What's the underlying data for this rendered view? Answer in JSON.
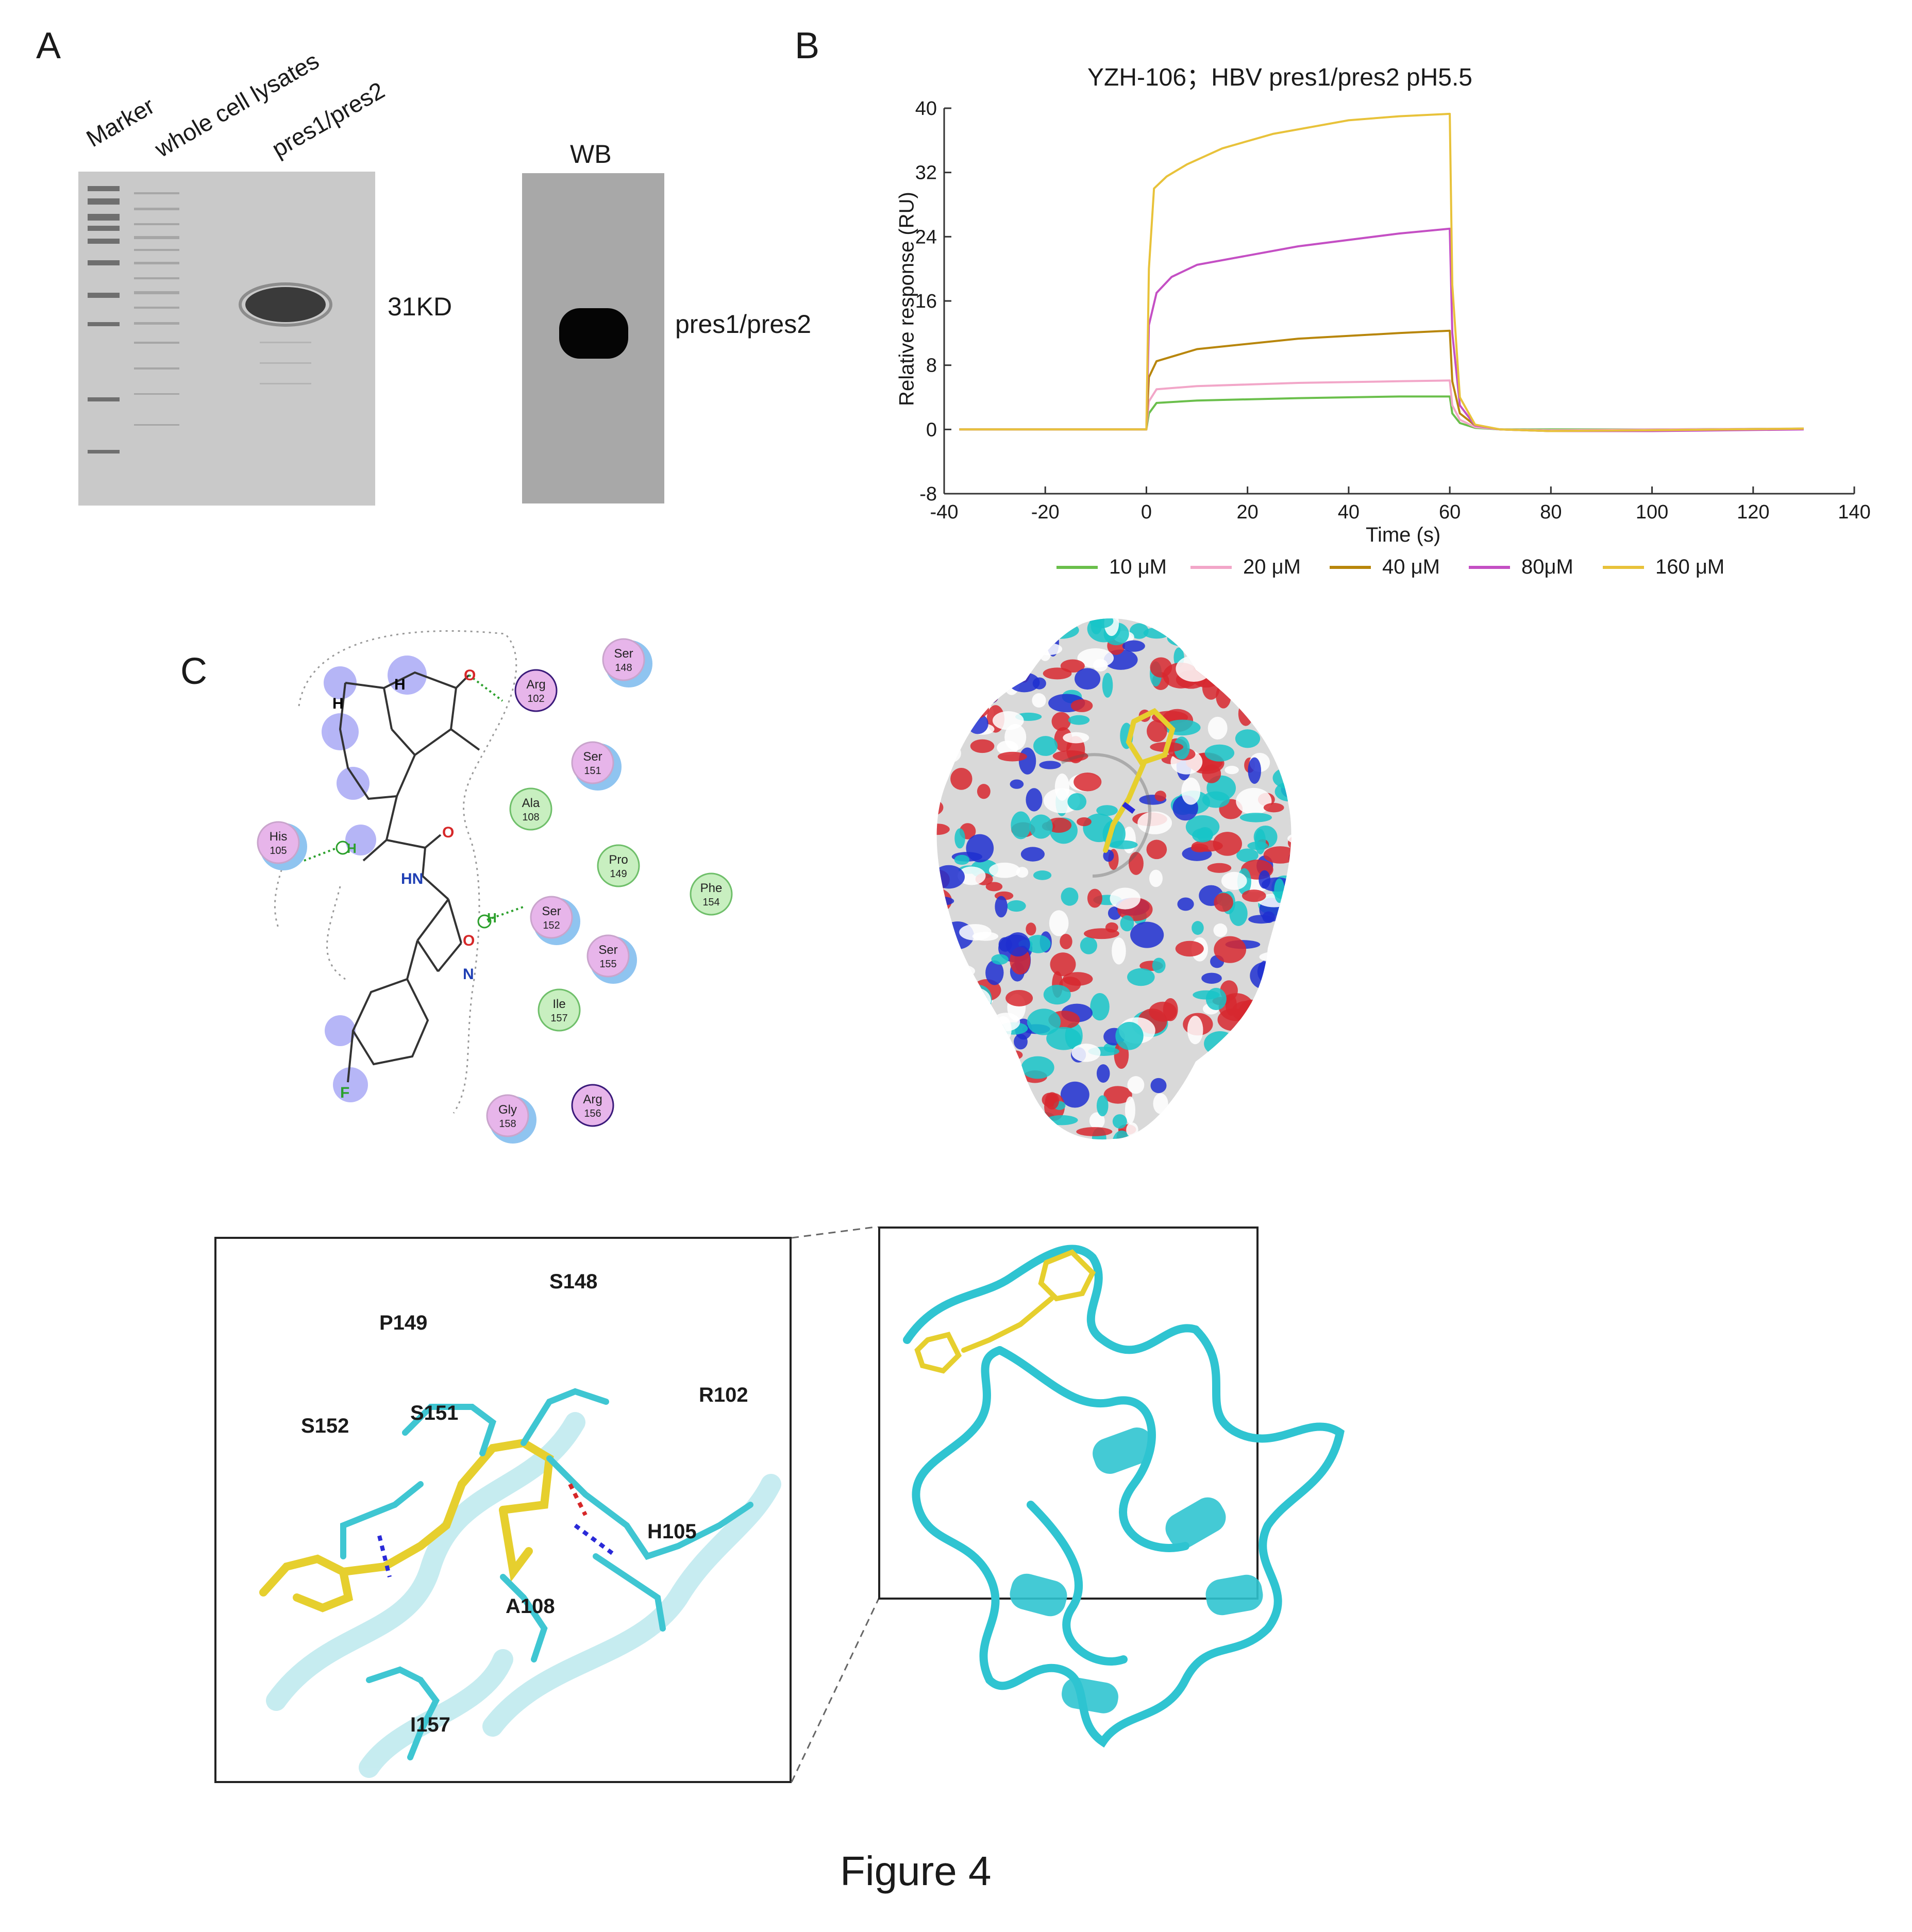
{
  "panels": {
    "a": {
      "letter": "A",
      "lane_labels": [
        "Marker",
        "whole cell lysates",
        "pres1/pres2"
      ],
      "wb_title": "WB",
      "band_label_gel": "31KD",
      "band_label_wb": "pres1/pres2"
    },
    "b": {
      "letter": "B"
    },
    "c": {
      "letter": "C",
      "residues_2d": [
        {
          "name": "Arg",
          "num": "102"
        },
        {
          "name": "Ser",
          "num": "148"
        },
        {
          "name": "Ser",
          "num": "151"
        },
        {
          "name": "His",
          "num": "105"
        },
        {
          "name": "Ala",
          "num": "108"
        },
        {
          "name": "Pro",
          "num": "149"
        },
        {
          "name": "Phe",
          "num": "154"
        },
        {
          "name": "Ser",
          "num": "152"
        },
        {
          "name": "Ser",
          "num": "155"
        },
        {
          "name": "Ile",
          "num": "157"
        },
        {
          "name": "Gly",
          "num": "158"
        },
        {
          "name": "Arg",
          "num": "156"
        }
      ],
      "ligand_atoms": {
        "o_top": "O",
        "h1": "H",
        "h2": "H",
        "h3": "H",
        "h4": "H",
        "o_amide": "O",
        "hn": "HN",
        "o_ring": "O",
        "n_ring": "N",
        "f": "F"
      },
      "zoom_labels": [
        "S148",
        "P149",
        "R102",
        "S152",
        "S151",
        "H105",
        "A108",
        "I157"
      ]
    }
  },
  "chart_data": {
    "type": "line",
    "title": "YZH-106；HBV pres1/pres2 pH5.5",
    "xlabel": "Time (s)",
    "ylabel": "Relative response (RU)",
    "xlim": [
      -40,
      140
    ],
    "ylim": [
      -8,
      40
    ],
    "xticks": [
      "-40",
      "-20",
      "0",
      "20",
      "40",
      "60",
      "80",
      "100",
      "120",
      "140"
    ],
    "yticks": [
      "40",
      "32",
      "24",
      "16",
      "8",
      "0",
      "-8"
    ],
    "grid": false,
    "legend_position": "bottom",
    "series": [
      {
        "name": "10 μM",
        "color": "#6abf4b",
        "x": [
          -37,
          0,
          0.5,
          2,
          10,
          30,
          50,
          60,
          60.5,
          62,
          65,
          70,
          80,
          100,
          130
        ],
        "y": [
          0,
          0,
          2,
          3.3,
          3.6,
          3.9,
          4.1,
          4.1,
          2,
          0.8,
          0.2,
          0,
          0,
          0,
          0.1
        ]
      },
      {
        "name": "20 μM",
        "color": "#f2a6c8",
        "x": [
          -37,
          0,
          0.5,
          2,
          10,
          30,
          50,
          60,
          60.5,
          62,
          65,
          70,
          80,
          100,
          130
        ],
        "y": [
          0,
          0,
          3.5,
          5.0,
          5.4,
          5.8,
          6.0,
          6.1,
          3,
          1.2,
          0.3,
          0,
          -0.1,
          0,
          0.1
        ]
      },
      {
        "name": "40 μM",
        "color": "#b8860b",
        "x": [
          -37,
          0,
          0.5,
          2,
          10,
          30,
          50,
          60,
          60.5,
          62,
          65,
          70,
          80,
          100,
          130
        ],
        "y": [
          0,
          0,
          6.5,
          8.5,
          10.0,
          11.3,
          12.0,
          12.3,
          6,
          2,
          0.5,
          0,
          -0.2,
          -0.1,
          0.1
        ]
      },
      {
        "name": "80μM",
        "color": "#c44fc4",
        "x": [
          -37,
          0,
          0.5,
          2,
          5,
          10,
          30,
          50,
          60,
          60.5,
          62,
          65,
          70,
          80,
          100,
          130
        ],
        "y": [
          0,
          0,
          13,
          17,
          19,
          20.5,
          22.8,
          24.4,
          25,
          12,
          3,
          0.5,
          0,
          -0.2,
          -0.2,
          0
        ]
      },
      {
        "name": "160 μM",
        "color": "#e8c23a",
        "x": [
          -37,
          0,
          0.5,
          1.5,
          4,
          8,
          15,
          25,
          40,
          50,
          60,
          60.5,
          62,
          65,
          70,
          80,
          100,
          130
        ],
        "y": [
          0,
          0,
          20,
          30,
          31.5,
          33,
          35,
          36.8,
          38.5,
          39,
          39.3,
          18,
          4,
          0.6,
          0,
          -0.2,
          -0.1,
          0.1
        ]
      }
    ]
  },
  "caption": "Figure 4"
}
